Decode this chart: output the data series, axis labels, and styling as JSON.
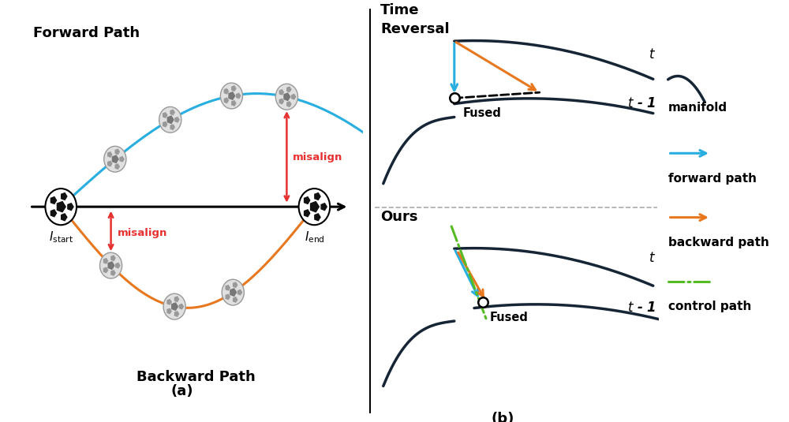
{
  "title_a": "(a)",
  "title_b": "(b)",
  "forward_path_label": "Forward Path",
  "backward_path_label": "Backward Path",
  "time_reversal_label_1": "Time",
  "time_reversal_label_2": "Reversal",
  "ours_label": "Ours",
  "i_start_label": "$I_{\\mathrm{start}}$",
  "i_end_label": "$I_{\\mathrm{end}}$",
  "misalign_label": "misalign",
  "fused_label": "Fused",
  "t_label": "$t$",
  "t1_label": "$t$ - 1",
  "manifold_label": "manifold",
  "forward_path_legend": "forward path",
  "backward_path_legend": "backward path",
  "control_path_legend": "control path",
  "color_forward": "#29aee0",
  "color_backward": "#e87820",
  "color_control": "#55bb22",
  "color_manifold": "#162535",
  "color_red": "#e83030",
  "background": "#ffffff"
}
